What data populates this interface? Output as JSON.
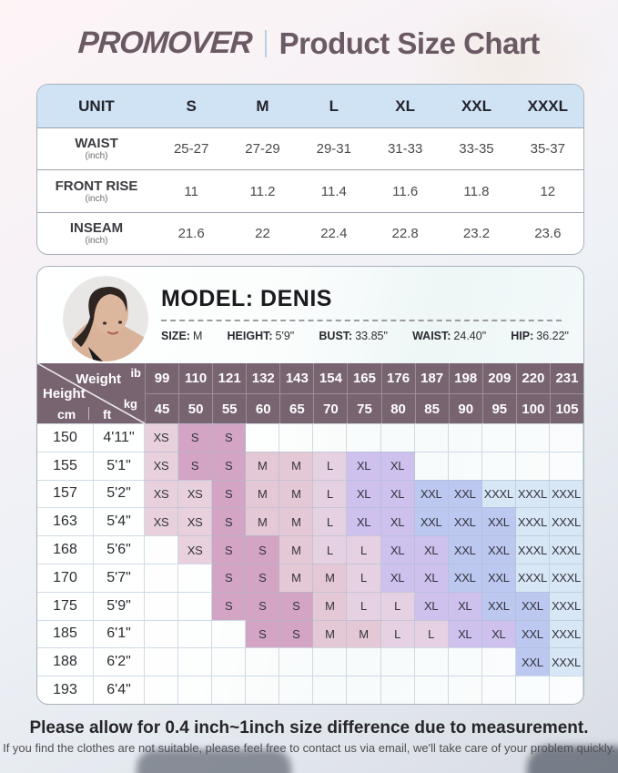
{
  "header": {
    "brand": "PROMOVER",
    "title": "Product Size Chart"
  },
  "size_table": {
    "columns": [
      "UNIT",
      "S",
      "M",
      "L",
      "XL",
      "XXL",
      "XXXL"
    ],
    "rows": [
      {
        "label": "WAIST",
        "unit": "(inch)",
        "values": [
          "25-27",
          "27-29",
          "29-31",
          "31-33",
          "33-35",
          "35-37"
        ]
      },
      {
        "label": "FRONT RISE",
        "unit": "(inch)",
        "values": [
          "11",
          "11.2",
          "11.4",
          "11.6",
          "11.8",
          "12"
        ]
      },
      {
        "label": "INSEAM",
        "unit": "(inch)",
        "values": [
          "21.6",
          "22",
          "22.4",
          "22.8",
          "23.2",
          "23.6"
        ]
      }
    ]
  },
  "model": {
    "title": "MODEL: DENIS",
    "specs": [
      {
        "label": "SIZE:",
        "value": "M"
      },
      {
        "label": "HEIGHT:",
        "value": "5'9\""
      },
      {
        "label": "BUST:",
        "value": "33.85\""
      },
      {
        "label": "WAIST:",
        "value": "24.40\""
      },
      {
        "label": "HIP:",
        "value": "36.22\""
      }
    ]
  },
  "matrix": {
    "corner": {
      "weight_label": "Weight",
      "lb_label": "ib",
      "kg_label": "kg",
      "height_label": "Height",
      "cm_label": "cm",
      "ft_label": "ft"
    },
    "lb_values": [
      "99",
      "110",
      "121",
      "132",
      "143",
      "154",
      "165",
      "176",
      "187",
      "198",
      "209",
      "220",
      "231"
    ],
    "kg_values": [
      "45",
      "50",
      "55",
      "60",
      "65",
      "70",
      "75",
      "80",
      "85",
      "90",
      "95",
      "100",
      "105"
    ],
    "rows": [
      {
        "cm": "150",
        "ft": "4'11\"",
        "sizes": [
          "XS",
          "S",
          "S",
          "",
          "",
          "",
          "",
          "",
          "",
          "",
          "",
          "",
          ""
        ]
      },
      {
        "cm": "155",
        "ft": "5'1\"",
        "sizes": [
          "XS",
          "S",
          "S",
          "M",
          "M",
          "L",
          "XL",
          "XL",
          "",
          "",
          "",
          "",
          ""
        ]
      },
      {
        "cm": "157",
        "ft": "5'2\"",
        "sizes": [
          "XS",
          "XS",
          "S",
          "M",
          "M",
          "L",
          "XL",
          "XL",
          "XXL",
          "XXL",
          "XXXL",
          "XXXL",
          "XXXL"
        ]
      },
      {
        "cm": "163",
        "ft": "5'4\"",
        "sizes": [
          "XS",
          "XS",
          "S",
          "M",
          "M",
          "L",
          "XL",
          "XL",
          "XXL",
          "XXL",
          "XXL",
          "XXXL",
          "XXXL"
        ]
      },
      {
        "cm": "168",
        "ft": "5'6\"",
        "sizes": [
          "",
          "XS",
          "S",
          "S",
          "M",
          "L",
          "L",
          "XL",
          "XL",
          "XXL",
          "XXL",
          "XXXL",
          "XXXL"
        ]
      },
      {
        "cm": "170",
        "ft": "5'7\"",
        "sizes": [
          "",
          "",
          "S",
          "S",
          "M",
          "M",
          "L",
          "XL",
          "XL",
          "XXL",
          "XXL",
          "XXXL",
          "XXXL"
        ]
      },
      {
        "cm": "175",
        "ft": "5'9\"",
        "sizes": [
          "",
          "",
          "S",
          "S",
          "S",
          "M",
          "L",
          "L",
          "XL",
          "XL",
          "XXL",
          "XXL",
          "XXXL"
        ]
      },
      {
        "cm": "185",
        "ft": "6'1\"",
        "sizes": [
          "",
          "",
          "",
          "S",
          "S",
          "M",
          "M",
          "L",
          "L",
          "XL",
          "XL",
          "XXL",
          "XXXL"
        ]
      },
      {
        "cm": "188",
        "ft": "6'2\"",
        "sizes": [
          "",
          "",
          "",
          "",
          "",
          "",
          "",
          "",
          "",
          "",
          "",
          "XXL",
          "XXXL"
        ]
      },
      {
        "cm": "193",
        "ft": "6'4\"",
        "sizes": [
          "",
          "",
          "",
          "",
          "",
          "",
          "",
          "",
          "",
          "",
          "",
          "",
          ""
        ]
      }
    ],
    "size_colors": {
      "XS": "#e8d1dd",
      "S": "#d3a4c4",
      "M": "#e5c8d5",
      "L": "#e5d1e2",
      "XL": "#cec1ee",
      "XXL": "#bdc8f1",
      "XXXL": "#d8e7f6"
    },
    "header_bg": "#786371"
  },
  "footer": {
    "line1": "Please allow for 0.4 inch~1inch size difference due to measurement.",
    "line2": "If you find the clothes are not suitable, please feel free to contact us via email, we'll take care of your problem quickly."
  }
}
